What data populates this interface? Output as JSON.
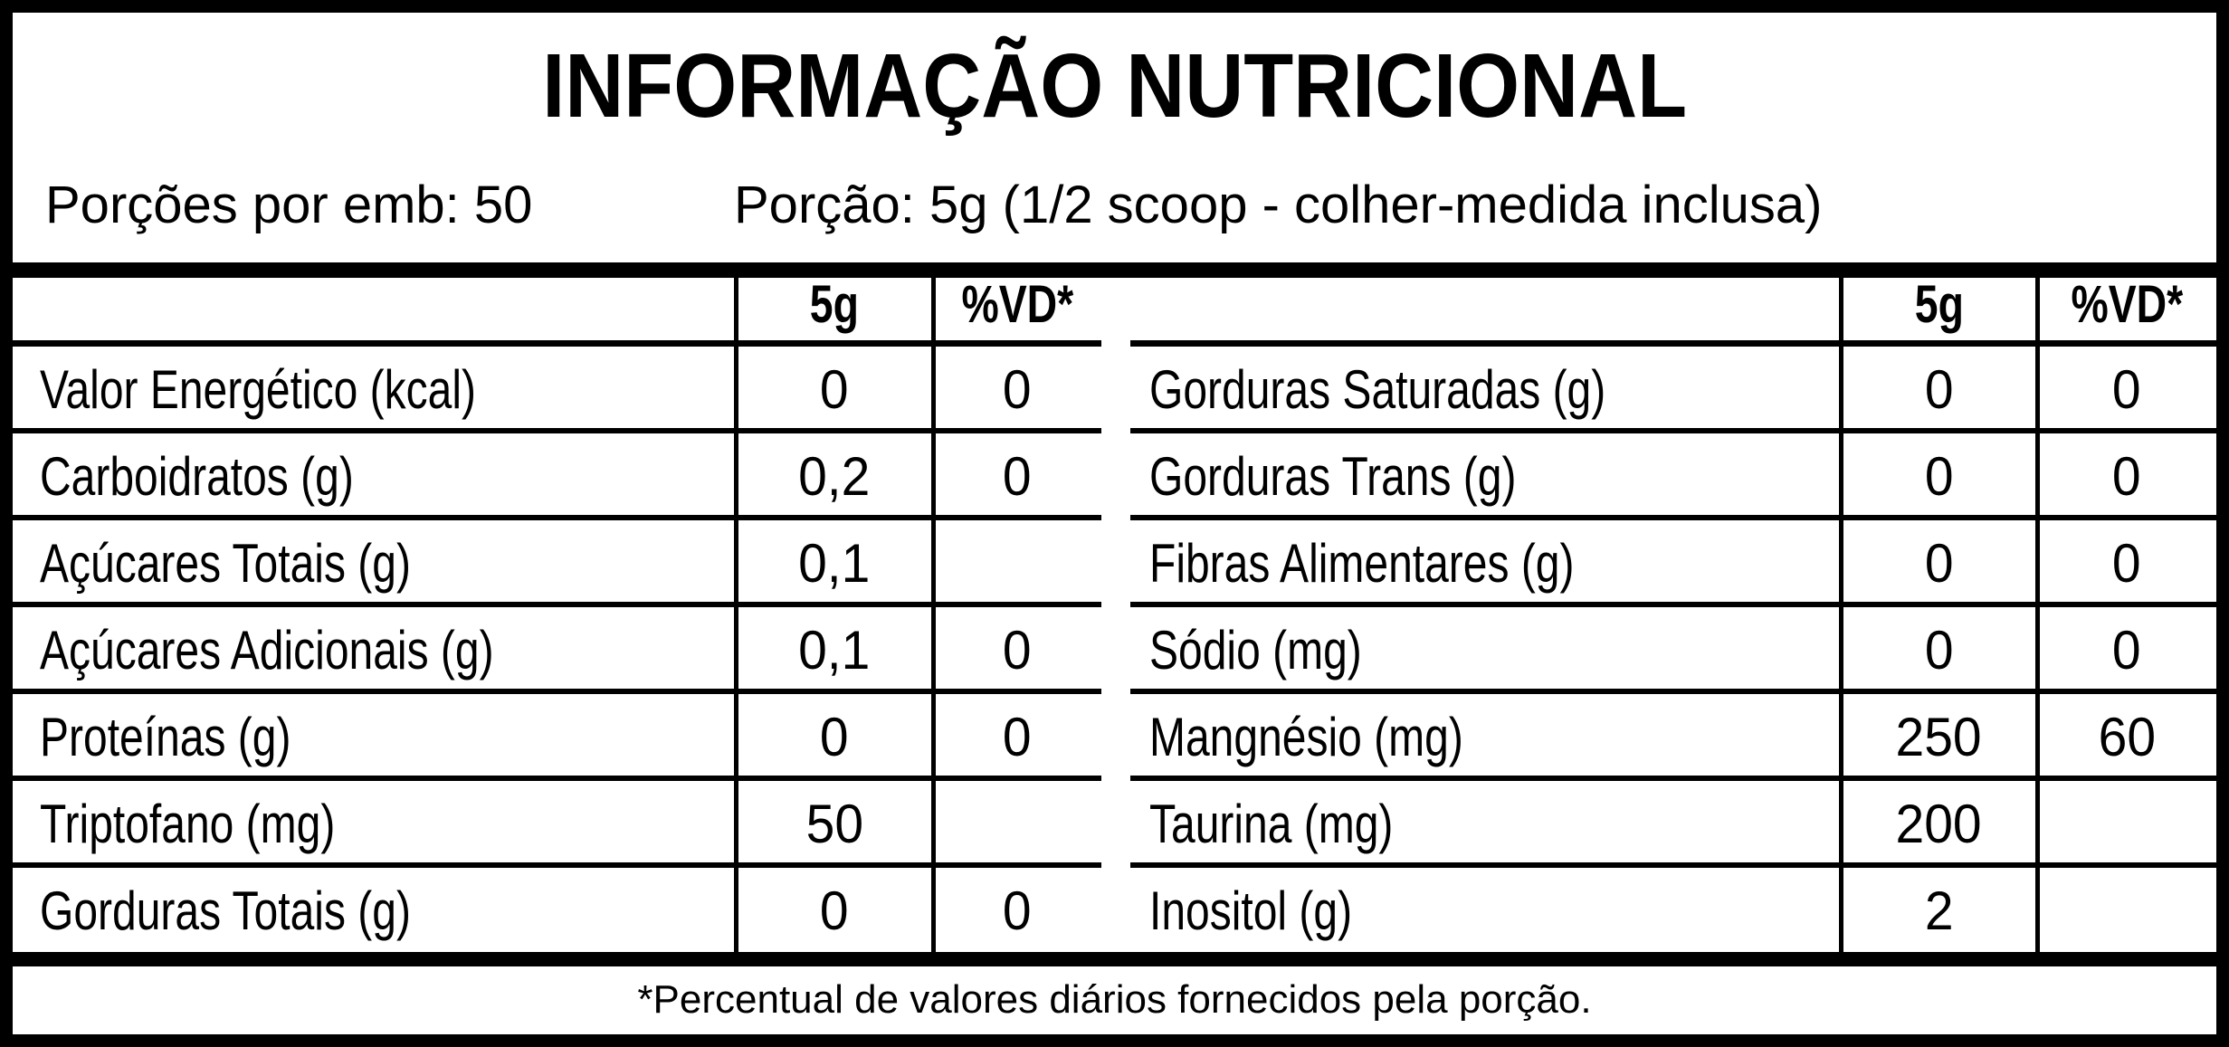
{
  "title": "INFORMAÇÃO NUTRICIONAL",
  "servings_per_package": "Porções por emb: 50",
  "serving_size": "Porção: 5g (1/2 scoop - colher-medida inclusa)",
  "columns": {
    "amount": "5g",
    "dv": "%VD*"
  },
  "left_rows": [
    {
      "name": "Valor Energético (kcal)",
      "amount": "0",
      "dv": "0"
    },
    {
      "name": "Carboidratos (g)",
      "amount": "0,2",
      "dv": "0"
    },
    {
      "name": "Açúcares Totais (g)",
      "amount": "0,1",
      "dv": ""
    },
    {
      "name": "Açúcares Adicionais (g)",
      "amount": "0,1",
      "dv": "0"
    },
    {
      "name": "Proteínas (g)",
      "amount": "0",
      "dv": "0"
    },
    {
      "name": "Triptofano (mg)",
      "amount": "50",
      "dv": ""
    },
    {
      "name": "Gorduras Totais (g)",
      "amount": "0",
      "dv": "0"
    }
  ],
  "right_rows": [
    {
      "name": "Gorduras Saturadas (g)",
      "amount": "0",
      "dv": "0"
    },
    {
      "name": "Gorduras Trans (g)",
      "amount": "0",
      "dv": "0"
    },
    {
      "name": "Fibras Alimentares (g)",
      "amount": "0",
      "dv": "0"
    },
    {
      "name": "Sódio (mg)",
      "amount": "0",
      "dv": "0"
    },
    {
      "name": "Mangnésio (mg)",
      "amount": "250",
      "dv": "60"
    },
    {
      "name": "Taurina (mg)",
      "amount": "200",
      "dv": ""
    },
    {
      "name": "Inositol (g)",
      "amount": "2",
      "dv": ""
    }
  ],
  "footnote": "*Percentual de valores diários fornecidos pela porção."
}
